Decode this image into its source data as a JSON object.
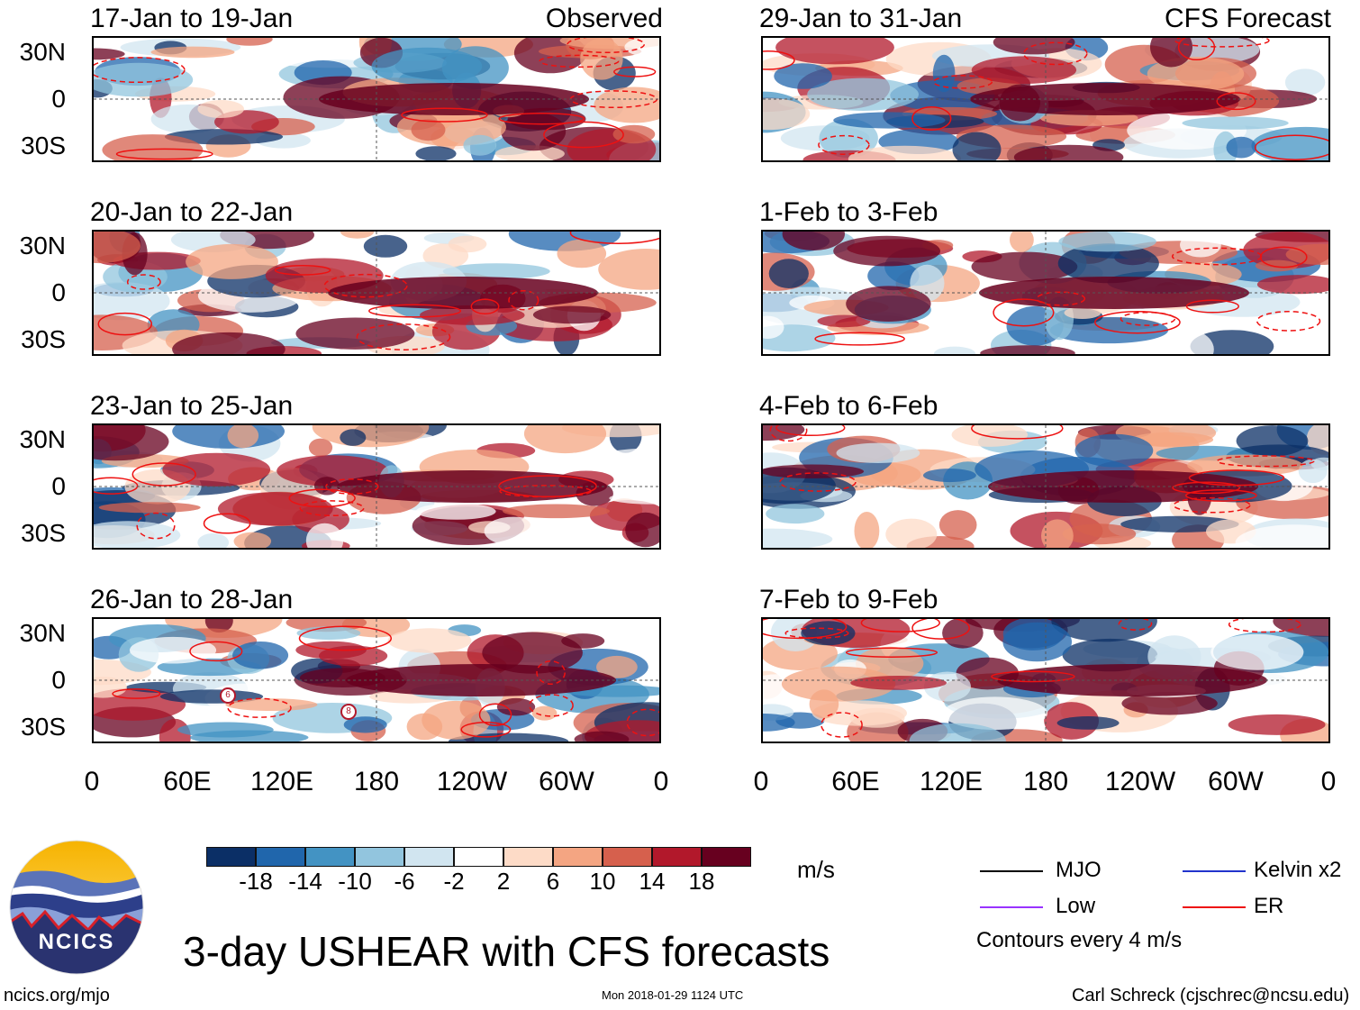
{
  "panels": [
    {
      "title": "17-Jan to 19-Jan",
      "tag": "Observed"
    },
    {
      "title": "20-Jan to 22-Jan",
      "tag": ""
    },
    {
      "title": "23-Jan to 25-Jan",
      "tag": ""
    },
    {
      "title": "26-Jan to 28-Jan",
      "tag": ""
    },
    {
      "title": "29-Jan to 31-Jan",
      "tag": "CFS Forecast"
    },
    {
      "title": "1-Feb to 3-Feb",
      "tag": ""
    },
    {
      "title": "4-Feb to 6-Feb",
      "tag": ""
    },
    {
      "title": "7-Feb to 9-Feb",
      "tag": ""
    }
  ],
  "lat_labels": [
    "30N",
    "0",
    "30S"
  ],
  "lon_labels": [
    "0",
    "60E",
    "120E",
    "180",
    "120W",
    "60W",
    "0"
  ],
  "tc_markers": [
    "6",
    "8"
  ],
  "colorbar": {
    "ticks": [
      "-18",
      "-14",
      "-10",
      "-6",
      "-2",
      "2",
      "6",
      "10",
      "14",
      "18"
    ],
    "unit": "m/s",
    "colors": [
      "#0b2f66",
      "#2066ac",
      "#4393c3",
      "#92c5de",
      "#d1e5f0",
      "#ffffff",
      "#fddbc7",
      "#f4a582",
      "#d6604d",
      "#b2182b",
      "#67001f"
    ]
  },
  "legend": {
    "mjo": "MJO",
    "kelvin": "Kelvin x2",
    "low": "Low",
    "er": "ER",
    "contours": "Contours every 4 m/s",
    "colors": {
      "mjo": "#000000",
      "kelvin": "#2233cc",
      "low": "#9933ff",
      "er": "#ee1111"
    }
  },
  "main_title": "3-day USHEAR with CFS forecasts",
  "logo": {
    "text": "NCICS",
    "url_label": "ncics.org/mjo"
  },
  "timestamp": "Mon 2018-01-29 1124 UTC",
  "credit": "Carl Schreck (cjschrec@ncsu.edu)"
}
